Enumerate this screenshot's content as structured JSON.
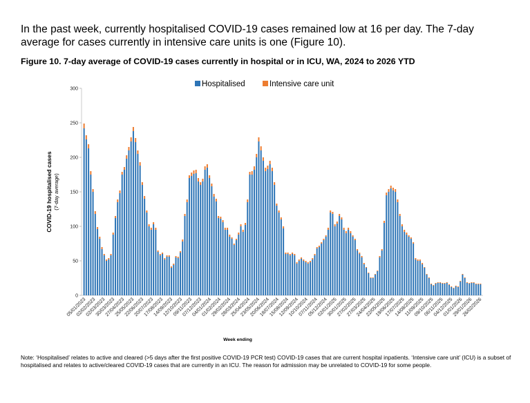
{
  "intro_text": "In the past week, currently hospitalised COVID-19 cases remained low at 16 per day. The 7-day average for cases currently in intensive care units is one (Figure 10).",
  "figure_title": "Figure 10. 7-day average of COVID-19 cases currently in hospital or in ICU, WA, 2024 to 2026 YTD",
  "note_text": "Note: ‘Hospitalised’ relates to active and cleared (>5 days after the first positive COVID-19 PCR test) COVID-19 cases that are current hospital inpatients. ‘Intensive care unit’ (ICU) is a subset of hospitalised and relates to active/cleared COVID-19 cases that are currently in an ICU. The reason for admission may be unrelated to COVID-19 for some people.",
  "colors": {
    "hospitalised": "#2e75b6",
    "icu": "#ed7d31",
    "axis": "#bfbfbf"
  },
  "chart_data": {
    "type": "bar",
    "stacked": true,
    "title": "7-day average of COVID-19 cases currently in hospital or in ICU, WA, 2024 to 2026 YTD",
    "xlabel": "Week ending",
    "ylabel": "COVID-19 hospitalised cases",
    "ylabel_sub": "(7-day average)",
    "ylim": [
      0,
      300
    ],
    "yticks": [
      0,
      50,
      100,
      150,
      200,
      250,
      300
    ],
    "legend": [
      "Hospitalised",
      "Intensive care unit"
    ],
    "x_tick_labels": [
      "05/01/2023",
      "02/02/2023",
      "02/03/2023",
      "30/03/2023",
      "27/04/2023",
      "25/05/2023",
      "22/06/2023",
      "20/07/2023",
      "17/08/2023",
      "14/09/2023",
      "12/10/2023",
      "09/11/2023",
      "07/12/2023",
      "04/01/2024",
      "01/02/2024",
      "29/02/2024",
      "28/03/2024",
      "25/04/2024",
      "23/05/2024",
      "20/06/2024",
      "18/07/2024",
      "15/08/2024",
      "12/09/2024",
      "10/10/2024",
      "07/11/2024",
      "05/12/2024",
      "02/01/2025",
      "30/01/2025",
      "27/02/2025",
      "27/03/2025",
      "24/04/2025",
      "22/05/2025",
      "19/06/2025",
      "17/07/2025",
      "14/08/2025",
      "11/09/2025",
      "09/10/2025",
      "06/11/2025",
      "04/12/2025",
      "01/01/2026",
      "29/01/2026",
      "26/02/2026"
    ],
    "series": [
      {
        "name": "Hospitalised",
        "values": [
          242,
          226,
          213,
          175,
          150,
          118,
          96,
          82,
          67,
          58,
          50,
          52,
          58,
          88,
          112,
          135,
          148,
          175,
          182,
          198,
          210,
          223,
          238,
          222,
          205,
          188,
          160,
          140,
          120,
          100,
          95,
          103,
          95,
          63,
          58,
          60,
          52,
          56,
          56,
          40,
          44,
          55,
          54,
          62,
          78,
          115,
          135,
          170,
          173,
          176,
          177,
          165,
          160,
          165,
          182,
          185,
          170,
          158,
          143,
          136,
          112,
          111,
          106,
          95,
          95,
          85,
          82,
          73,
          80,
          88,
          100,
          92,
          102,
          135,
          175,
          175,
          182,
          200,
          223,
          210,
          195,
          180,
          183,
          190,
          180,
          160,
          130,
          120,
          110,
          97,
          60,
          60,
          58,
          60,
          58,
          46,
          50,
          53,
          50,
          48,
          46,
          48,
          52,
          58,
          68,
          70,
          75,
          80,
          85,
          95,
          120,
          118,
          100,
          104,
          115,
          110,
          95,
          90,
          95,
          90,
          85,
          80,
          65,
          60,
          55,
          45,
          40,
          32,
          25,
          25,
          30,
          35,
          55,
          65,
          105,
          145,
          150,
          155,
          152,
          150,
          135,
          115,
          100,
          92,
          88,
          85,
          82,
          75,
          52,
          50,
          50,
          45,
          40,
          30,
          25,
          16,
          14,
          17,
          18,
          18,
          17,
          17,
          18,
          15,
          12,
          10,
          13,
          12,
          20,
          30,
          25,
          18,
          17,
          18,
          18,
          16,
          16,
          16
        ]
      },
      {
        "name": "Intensive care unit",
        "values": [
          7,
          6,
          6,
          5,
          4,
          4,
          3,
          3,
          3,
          2,
          2,
          2,
          2,
          3,
          3,
          4,
          4,
          4,
          4,
          5,
          5,
          6,
          6,
          6,
          5,
          5,
          4,
          4,
          3,
          3,
          3,
          3,
          3,
          2,
          2,
          2,
          2,
          2,
          2,
          2,
          2,
          2,
          2,
          2,
          3,
          3,
          4,
          4,
          5,
          5,
          5,
          5,
          4,
          4,
          5,
          5,
          4,
          4,
          4,
          4,
          3,
          3,
          3,
          3,
          3,
          3,
          2,
          2,
          2,
          3,
          3,
          3,
          3,
          4,
          4,
          5,
          5,
          5,
          6,
          6,
          5,
          5,
          5,
          5,
          5,
          4,
          3,
          3,
          3,
          3,
          2,
          2,
          2,
          2,
          2,
          2,
          2,
          2,
          2,
          2,
          2,
          2,
          2,
          2,
          2,
          2,
          2,
          2,
          2,
          3,
          3,
          3,
          3,
          3,
          3,
          3,
          3,
          3,
          3,
          3,
          2,
          2,
          2,
          2,
          2,
          2,
          1,
          1,
          1,
          1,
          1,
          1,
          2,
          2,
          3,
          4,
          4,
          4,
          4,
          4,
          4,
          3,
          3,
          3,
          3,
          2,
          2,
          2,
          2,
          2,
          2,
          2,
          1,
          1,
          1,
          1,
          1,
          1,
          1,
          1,
          1,
          1,
          1,
          1,
          1,
          1,
          1,
          1,
          1,
          1,
          1,
          1,
          1,
          1,
          1,
          1,
          1,
          1,
          1
        ]
      }
    ]
  }
}
